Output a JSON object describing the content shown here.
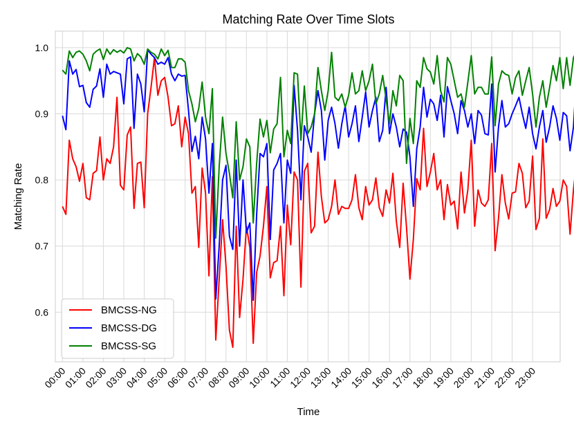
{
  "chart_data": {
    "type": "line",
    "title": "Matching Rate Over Time Slots",
    "xlabel": "Time",
    "ylabel": "Matching Rate",
    "ylim": [
      0.525,
      1.025
    ],
    "xlim": [
      -0.35,
      24.35
    ],
    "grid": true,
    "legend_position": "lower-left",
    "x_ticks": [
      "00:00",
      "01:00",
      "02:00",
      "03:00",
      "04:00",
      "05:00",
      "06:00",
      "07:00",
      "08:00",
      "09:00",
      "10:00",
      "11:00",
      "12:00",
      "13:00",
      "14:00",
      "15:00",
      "16:00",
      "17:00",
      "18:00",
      "19:00",
      "20:00",
      "21:00",
      "22:00",
      "23:00"
    ],
    "y_ticks": [
      "0.6",
      "0.7",
      "0.8",
      "0.9",
      "1.0"
    ],
    "points_per_hour": 6,
    "series": [
      {
        "name": "BMCSS-NG",
        "color": "#ff0000",
        "values": [
          0.76,
          0.748,
          0.86,
          0.832,
          0.82,
          0.798,
          0.825,
          0.773,
          0.77,
          0.81,
          0.814,
          0.865,
          0.8,
          0.832,
          0.825,
          0.85,
          0.925,
          0.792,
          0.785,
          0.868,
          0.88,
          0.757,
          0.825,
          0.827,
          0.758,
          0.9,
          0.94,
          0.985,
          0.928,
          0.95,
          0.955,
          0.925,
          0.882,
          0.885,
          0.912,
          0.85,
          0.895,
          0.87,
          0.78,
          0.79,
          0.698,
          0.818,
          0.78,
          0.655,
          0.805,
          0.558,
          0.65,
          0.74,
          0.67,
          0.573,
          0.547,
          0.73,
          0.592,
          0.65,
          0.73,
          0.698,
          0.553,
          0.66,
          0.685,
          0.73,
          0.79,
          0.652,
          0.675,
          0.678,
          0.73,
          0.625,
          0.762,
          0.702,
          0.812,
          0.8,
          0.638,
          0.813,
          0.825,
          0.72,
          0.73,
          0.842,
          0.775,
          0.735,
          0.74,
          0.76,
          0.8,
          0.748,
          0.76,
          0.757,
          0.757,
          0.77,
          0.808,
          0.758,
          0.74,
          0.79,
          0.762,
          0.77,
          0.803,
          0.758,
          0.745,
          0.785,
          0.765,
          0.81,
          0.738,
          0.698,
          0.795,
          0.728,
          0.65,
          0.71,
          0.802,
          0.785,
          0.878,
          0.79,
          0.812,
          0.84,
          0.785,
          0.8,
          0.74,
          0.793,
          0.762,
          0.768,
          0.726,
          0.812,
          0.75,
          0.785,
          0.86,
          0.73,
          0.785,
          0.765,
          0.76,
          0.77,
          0.855,
          0.693,
          0.742,
          0.808,
          0.765,
          0.741,
          0.78,
          0.782,
          0.825,
          0.81,
          0.758,
          0.768,
          0.836,
          0.725,
          0.742,
          0.862,
          0.742,
          0.755,
          0.787,
          0.76,
          0.768,
          0.8,
          0.79,
          0.718,
          0.785,
          0.831,
          0.76,
          0.77
        ]
      },
      {
        "name": "BMCSS-DG",
        "color": "#0000ff",
        "values": [
          0.897,
          0.876,
          0.98,
          0.96,
          0.967,
          0.941,
          0.943,
          0.917,
          0.91,
          0.937,
          0.942,
          0.968,
          0.925,
          0.975,
          0.96,
          0.964,
          0.962,
          0.96,
          0.915,
          0.983,
          0.986,
          0.878,
          0.96,
          0.945,
          0.903,
          0.997,
          0.99,
          0.985,
          0.975,
          0.978,
          0.975,
          0.985,
          0.96,
          0.95,
          0.96,
          0.957,
          0.958,
          0.905,
          0.843,
          0.866,
          0.832,
          0.895,
          0.862,
          0.78,
          0.855,
          0.62,
          0.7,
          0.8,
          0.822,
          0.715,
          0.695,
          0.83,
          0.7,
          0.8,
          0.72,
          0.735,
          0.618,
          0.748,
          0.84,
          0.835,
          0.855,
          0.71,
          0.815,
          0.825,
          0.84,
          0.735,
          0.83,
          0.81,
          0.943,
          0.875,
          0.77,
          0.882,
          0.865,
          0.842,
          0.9,
          0.935,
          0.905,
          0.83,
          0.89,
          0.91,
          0.885,
          0.848,
          0.885,
          0.912,
          0.865,
          0.885,
          0.912,
          0.858,
          0.895,
          0.933,
          0.88,
          0.905,
          0.925,
          0.858,
          0.875,
          0.94,
          0.87,
          0.9,
          0.88,
          0.85,
          0.877,
          0.872,
          0.835,
          0.76,
          0.847,
          0.88,
          0.94,
          0.895,
          0.922,
          0.915,
          0.89,
          0.928,
          0.865,
          0.941,
          0.92,
          0.9,
          0.87,
          0.92,
          0.905,
          0.88,
          0.9,
          0.855,
          0.905,
          0.898,
          0.87,
          0.868,
          0.945,
          0.812,
          0.88,
          0.92,
          0.88,
          0.885,
          0.9,
          0.912,
          0.925,
          0.9,
          0.878,
          0.91,
          0.87,
          0.847,
          0.88,
          0.905,
          0.857,
          0.88,
          0.912,
          0.893,
          0.86,
          0.902,
          0.897,
          0.844,
          0.88,
          0.967,
          0.88,
          0.855
        ]
      },
      {
        "name": "BMCSS-SG",
        "color": "#008000",
        "values": [
          0.966,
          0.96,
          0.995,
          0.985,
          0.993,
          0.995,
          0.99,
          0.98,
          0.965,
          0.99,
          0.995,
          0.998,
          0.982,
          0.998,
          0.99,
          0.997,
          0.993,
          0.996,
          0.992,
          1.0,
          0.998,
          0.98,
          0.991,
          0.986,
          0.975,
          0.998,
          0.993,
          0.99,
          0.983,
          0.998,
          0.988,
          0.996,
          0.97,
          0.97,
          0.983,
          0.983,
          0.978,
          0.935,
          0.915,
          0.888,
          0.908,
          0.948,
          0.895,
          0.87,
          0.938,
          0.712,
          0.82,
          0.895,
          0.84,
          0.81,
          0.773,
          0.888,
          0.8,
          0.82,
          0.862,
          0.85,
          0.735,
          0.825,
          0.892,
          0.865,
          0.89,
          0.841,
          0.877,
          0.885,
          0.955,
          0.835,
          0.875,
          0.855,
          0.962,
          0.96,
          0.86,
          0.942,
          0.87,
          0.88,
          0.9,
          0.97,
          0.935,
          0.905,
          0.935,
          0.993,
          0.925,
          0.92,
          0.93,
          0.91,
          0.928,
          0.962,
          0.93,
          0.935,
          0.965,
          0.935,
          0.95,
          0.975,
          0.915,
          0.93,
          0.958,
          0.922,
          0.885,
          0.935,
          0.912,
          0.958,
          0.95,
          0.825,
          0.893,
          0.855,
          0.95,
          0.94,
          0.985,
          0.968,
          0.963,
          0.945,
          0.988,
          0.935,
          0.918,
          0.985,
          0.975,
          0.95,
          0.925,
          0.93,
          0.91,
          0.948,
          0.988,
          0.93,
          0.94,
          0.94,
          0.93,
          0.93,
          0.986,
          0.882,
          0.945,
          0.965,
          0.96,
          0.958,
          0.93,
          0.955,
          0.965,
          0.928,
          0.95,
          0.97,
          0.93,
          0.88,
          0.925,
          0.95,
          0.91,
          0.94,
          0.973,
          0.95,
          0.985,
          0.938,
          0.985,
          0.943,
          0.985,
          0.995,
          0.935,
          0.9
        ]
      }
    ]
  }
}
